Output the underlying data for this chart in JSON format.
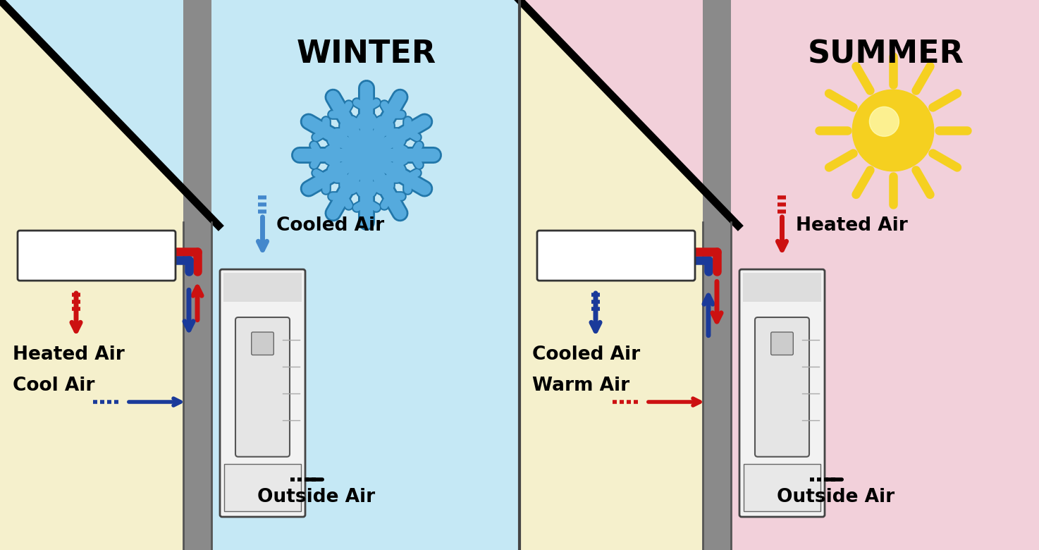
{
  "winter_bg": "#c5e8f5",
  "summer_bg": "#f2d0da",
  "indoor_bg": "#f5f0cc",
  "wall_color": "#8a8a8a",
  "wall_dark": "#666666",
  "title_winter": "WINTER",
  "title_summer": "SUMMER",
  "label_heated_air_winter": "Heated Air",
  "label_cooled_air_winter": "Cooled Air",
  "label_cool_air_winter": "Cool Air",
  "label_outside_air_winter": "Outside Air",
  "label_cooled_air_summer": "Cooled Air",
  "label_heated_air_summer": "Heated Air",
  "label_warm_air_summer": "Warm Air",
  "label_outside_air_summer": "Outside Air",
  "red_color": "#cc1111",
  "blue_color": "#1a3a9a",
  "blue_light": "#4488cc",
  "snowflake_color": "#55aadd",
  "snowflake_dark": "#2277aa",
  "sun_color": "#f5d020",
  "sun_center": "#ffffc0",
  "text_color": "#000000",
  "title_fontsize": 32,
  "label_fontsize": 19,
  "pipe_lw": 9,
  "arrow_lw": 4
}
